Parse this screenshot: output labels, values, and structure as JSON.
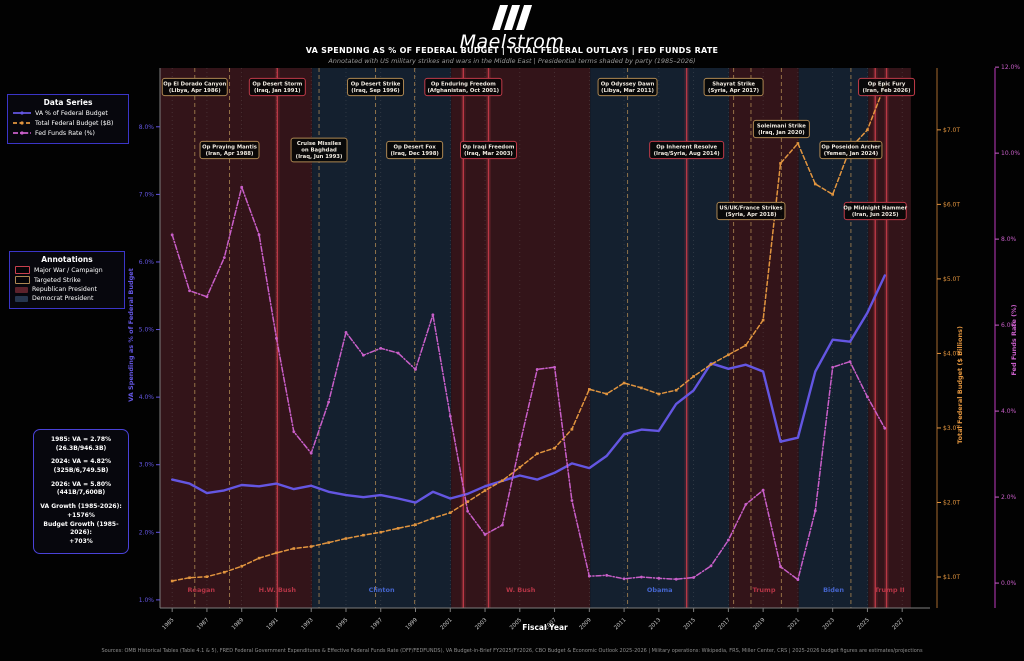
{
  "header": {
    "brand": "Maelstrom",
    "title": "VA SPENDING AS % OF FEDERAL BUDGET  |  TOTAL FEDERAL OUTLAYS  |  FED FUNDS RATE",
    "subtitle": "Annotated with US military strikes and wars in the Middle East  |  Presidential terms shaded by party  (1985–2026)"
  },
  "legend_series": {
    "title": "Data Series",
    "items": [
      {
        "label": "VA % of Federal Budget",
        "color": "#6456e2",
        "style": "solid"
      },
      {
        "label": "Total Federal Budget ($B)",
        "color": "#e2953f",
        "style": "dashed"
      },
      {
        "label": "Fed Funds Rate (%)",
        "color": "#c95fc9",
        "style": "dashdot"
      }
    ]
  },
  "legend_annotations": {
    "title": "Annotations",
    "items": [
      {
        "label": "Major War / Campaign",
        "kind": "outline",
        "color": "#c8404e"
      },
      {
        "label": "Targeted Strike",
        "kind": "outline",
        "color": "#ad8752"
      },
      {
        "label": "Republican President",
        "kind": "fill",
        "color": "#5c222b"
      },
      {
        "label": "Democrat President",
        "kind": "fill",
        "color": "#26364e"
      }
    ]
  },
  "stats_box": {
    "lines": [
      "1985: VA = 2.78%",
      "(26.3B/946.3B)",
      "",
      "2024: VA = 4.82%",
      "(325B/6,749.5B)",
      "",
      "2026: VA = 5.80%",
      "(441B/7,600B)",
      "",
      "VA Growth (1985-2026):",
      "+1576%",
      "Budget Growth (1985-2026):",
      "+703%"
    ]
  },
  "chart_data": {
    "type": "line",
    "x": [
      1985,
      1986,
      1987,
      1988,
      1989,
      1990,
      1991,
      1992,
      1993,
      1994,
      1995,
      1996,
      1997,
      1998,
      1999,
      2000,
      2001,
      2002,
      2003,
      2004,
      2005,
      2006,
      2007,
      2008,
      2009,
      2010,
      2011,
      2012,
      2013,
      2014,
      2015,
      2016,
      2017,
      2018,
      2019,
      2020,
      2021,
      2022,
      2023,
      2024,
      2025,
      2026
    ],
    "series": [
      {
        "name": "VA % of Federal Budget",
        "axis": "va",
        "color": "#6456e2",
        "style": "solid",
        "marker": "none",
        "values": [
          2.78,
          2.72,
          2.58,
          2.62,
          2.7,
          2.68,
          2.72,
          2.64,
          2.69,
          2.6,
          2.55,
          2.52,
          2.55,
          2.5,
          2.44,
          2.6,
          2.5,
          2.57,
          2.68,
          2.76,
          2.84,
          2.78,
          2.88,
          3.02,
          2.95,
          3.13,
          3.45,
          3.52,
          3.5,
          3.9,
          4.1,
          4.5,
          4.42,
          4.48,
          4.38,
          3.34,
          3.4,
          4.38,
          4.85,
          4.82,
          5.25,
          5.8
        ]
      },
      {
        "name": "Total Federal Budget ($B)",
        "axis": "budget",
        "color": "#e2953f",
        "style": "dashed",
        "marker": "square",
        "values": [
          946,
          990,
          1004,
          1064,
          1144,
          1253,
          1324,
          1382,
          1409,
          1462,
          1516,
          1561,
          1601,
          1653,
          1702,
          1789,
          1863,
          2011,
          2160,
          2293,
          2472,
          2655,
          2729,
          2983,
          3518,
          3457,
          3603,
          3537,
          3455,
          3506,
          3692,
          3853,
          3982,
          4109,
          4447,
          6550,
          6818,
          6273,
          6134,
          6750,
          7000,
          7600
        ]
      },
      {
        "name": "Fed Funds Rate (%)",
        "axis": "fed",
        "color": "#c95fc9",
        "style": "dashdot",
        "marker": "circle",
        "values": [
          8.1,
          6.8,
          6.66,
          7.57,
          9.21,
          8.1,
          5.69,
          3.52,
          3.02,
          4.21,
          5.83,
          5.3,
          5.46,
          5.35,
          4.97,
          6.24,
          3.88,
          1.67,
          1.13,
          1.35,
          3.22,
          4.97,
          5.02,
          1.92,
          0.16,
          0.18,
          0.1,
          0.14,
          0.11,
          0.09,
          0.13,
          0.4,
          1.0,
          1.83,
          2.16,
          0.38,
          0.08,
          1.68,
          5.02,
          5.15,
          4.33,
          3.6
        ]
      }
    ],
    "x_axis": {
      "label": "Fiscal Year",
      "range": [
        1984.3,
        2028.6
      ],
      "ticks": [
        1985,
        1987,
        1989,
        1991,
        1993,
        1995,
        1997,
        1999,
        2001,
        2003,
        2005,
        2007,
        2009,
        2011,
        2013,
        2015,
        2017,
        2019,
        2021,
        2023,
        2025,
        2027
      ]
    },
    "y_axes": {
      "va": {
        "label": "VA Spending as % of Federal Budget",
        "color": "#6456e2",
        "range": [
          0.88,
          8.87
        ],
        "ticks": [
          1,
          2,
          3,
          4,
          5,
          6,
          7,
          8
        ],
        "tick_labels": [
          "1.0%",
          "2.0%",
          "3.0%",
          "4.0%",
          "5.0%",
          "6.0%",
          "7.0%",
          "8.0%"
        ]
      },
      "budget": {
        "label": "Total Federal Budget ($ Billions)",
        "color": "#e2953f",
        "range": [
          584,
          7830
        ],
        "ticks": [
          1000,
          2000,
          3000,
          4000,
          5000,
          6000,
          7000
        ],
        "tick_labels": [
          "$1.0T",
          "$2.0T",
          "$3.0T",
          "$4.0T",
          "$5.0T",
          "$6.0T",
          "$7.0T"
        ]
      },
      "fed": {
        "label": "Fed Funds Rate (%)",
        "color": "#c95fc9",
        "range": [
          -0.58,
          11.98
        ],
        "ticks": [
          0,
          2,
          4,
          6,
          8,
          10,
          12
        ],
        "tick_labels": [
          "0.0%",
          "2.0%",
          "4.0%",
          "6.0%",
          "8.0%",
          "10.0%",
          "12.0%"
        ]
      }
    },
    "presidents": [
      {
        "name": "Reagan",
        "party": "R",
        "start": 1984.3,
        "end": 1989.05
      },
      {
        "name": "H.W. Bush",
        "party": "R",
        "start": 1989.05,
        "end": 1993.05
      },
      {
        "name": "Clinton",
        "party": "D",
        "start": 1993.05,
        "end": 2001.05
      },
      {
        "name": "W. Bush",
        "party": "R",
        "start": 2001.05,
        "end": 2009.05
      },
      {
        "name": "Obama",
        "party": "D",
        "start": 2009.05,
        "end": 2017.05
      },
      {
        "name": "Trump",
        "party": "R",
        "start": 2017.05,
        "end": 2021.05
      },
      {
        "name": "Biden",
        "party": "D",
        "start": 2021.05,
        "end": 2025.05
      },
      {
        "name": "Trump II",
        "party": "R",
        "start": 2025.05,
        "end": 2027.5
      }
    ],
    "annotations": [
      {
        "lines": [
          "Op El Dorado Canyon",
          "(Libya, Apr 1986)"
        ],
        "type": "strike",
        "year": 1986.3,
        "row": 1
      },
      {
        "lines": [
          "Op Praying Mantis",
          "(Iran, Apr 1988)"
        ],
        "type": "strike",
        "year": 1988.3,
        "row": 2
      },
      {
        "lines": [
          "Op Desert Storm",
          "(Iraq, Jan 1991)"
        ],
        "type": "war",
        "year": 1991.05,
        "row": 1
      },
      {
        "lines": [
          "Cruise Missiles",
          "on Baghdad",
          "(Iraq, Jun 1993)"
        ],
        "type": "strike",
        "year": 1993.45,
        "row": 2
      },
      {
        "lines": [
          "Op Desert Strike",
          "(Iraq, Sep 1996)"
        ],
        "type": "strike",
        "year": 1996.7,
        "row": 1
      },
      {
        "lines": [
          "Op Desert Fox",
          "(Iraq, Dec 1998)"
        ],
        "type": "strike",
        "year": 1998.95,
        "row": 2
      },
      {
        "lines": [
          "Op Enduring Freedom",
          "(Afghanistan, Oct 2001)"
        ],
        "type": "war",
        "year": 2001.75,
        "row": 1
      },
      {
        "lines": [
          "Op Iraqi Freedom",
          "(Iraq, Mar 2003)"
        ],
        "type": "war",
        "year": 2003.2,
        "row": 2
      },
      {
        "lines": [
          "Op Odyssey Dawn",
          "(Libya, Mar 2011)"
        ],
        "type": "strike",
        "year": 2011.2,
        "row": 1
      },
      {
        "lines": [
          "Op Inherent Resolve",
          "(Iraq/Syria, Aug 2014)"
        ],
        "type": "war",
        "year": 2014.6,
        "row": 2
      },
      {
        "lines": [
          "Shayrat Strike",
          "(Syria, Apr 2017)"
        ],
        "type": "strike",
        "year": 2017.3,
        "row": 1
      },
      {
        "lines": [
          "US/UK/France Strikes",
          "(Syria, Apr 2018)"
        ],
        "type": "strike",
        "year": 2018.3,
        "row": 3
      },
      {
        "lines": [
          "Soleimani Strike",
          "(Iraq, Jan 2020)"
        ],
        "type": "strike",
        "year": 2020.05,
        "row": 2,
        "dy": -21
      },
      {
        "lines": [
          "Op Poseidon Archer",
          "(Yemen, Jan 2024)"
        ],
        "type": "strike",
        "year": 2024.05,
        "row": 2
      },
      {
        "lines": [
          "Op Midnight Hammer",
          "(Iran, Jun 2025)"
        ],
        "type": "war",
        "year": 2025.45,
        "row": 3
      },
      {
        "lines": [
          "Op Epic Fury",
          "(Iran, Feb 2026)"
        ],
        "type": "war",
        "year": 2026.1,
        "row": 1
      }
    ],
    "colors": {
      "republican_band": "#331419",
      "democrat_band": "#14202f",
      "war_line": "#c03a48",
      "strike_line": "#ad8752",
      "republican_label": "#b53546",
      "democrat_label": "#4464cc",
      "grid": "#8a8a8a",
      "spine": "#7d7d7d",
      "tick_label": "#c9c9c9",
      "annotation_text": "#f2ece2"
    }
  },
  "footer": {
    "text": "Sources: OMB Historical Tables (Table 4.1 & 5), FRED Federal Government Expenditures & Effective Federal Funds Rate (DFF/FEDFUNDS), VA Budget-in-Brief FY2025/FY2026, CBO Budget & Economic Outlook 2025-2026  |  Military operations: Wikipedia, FRS, Miller Center, CRS  |  2025-2026 budget figures are estimates/projections"
  }
}
